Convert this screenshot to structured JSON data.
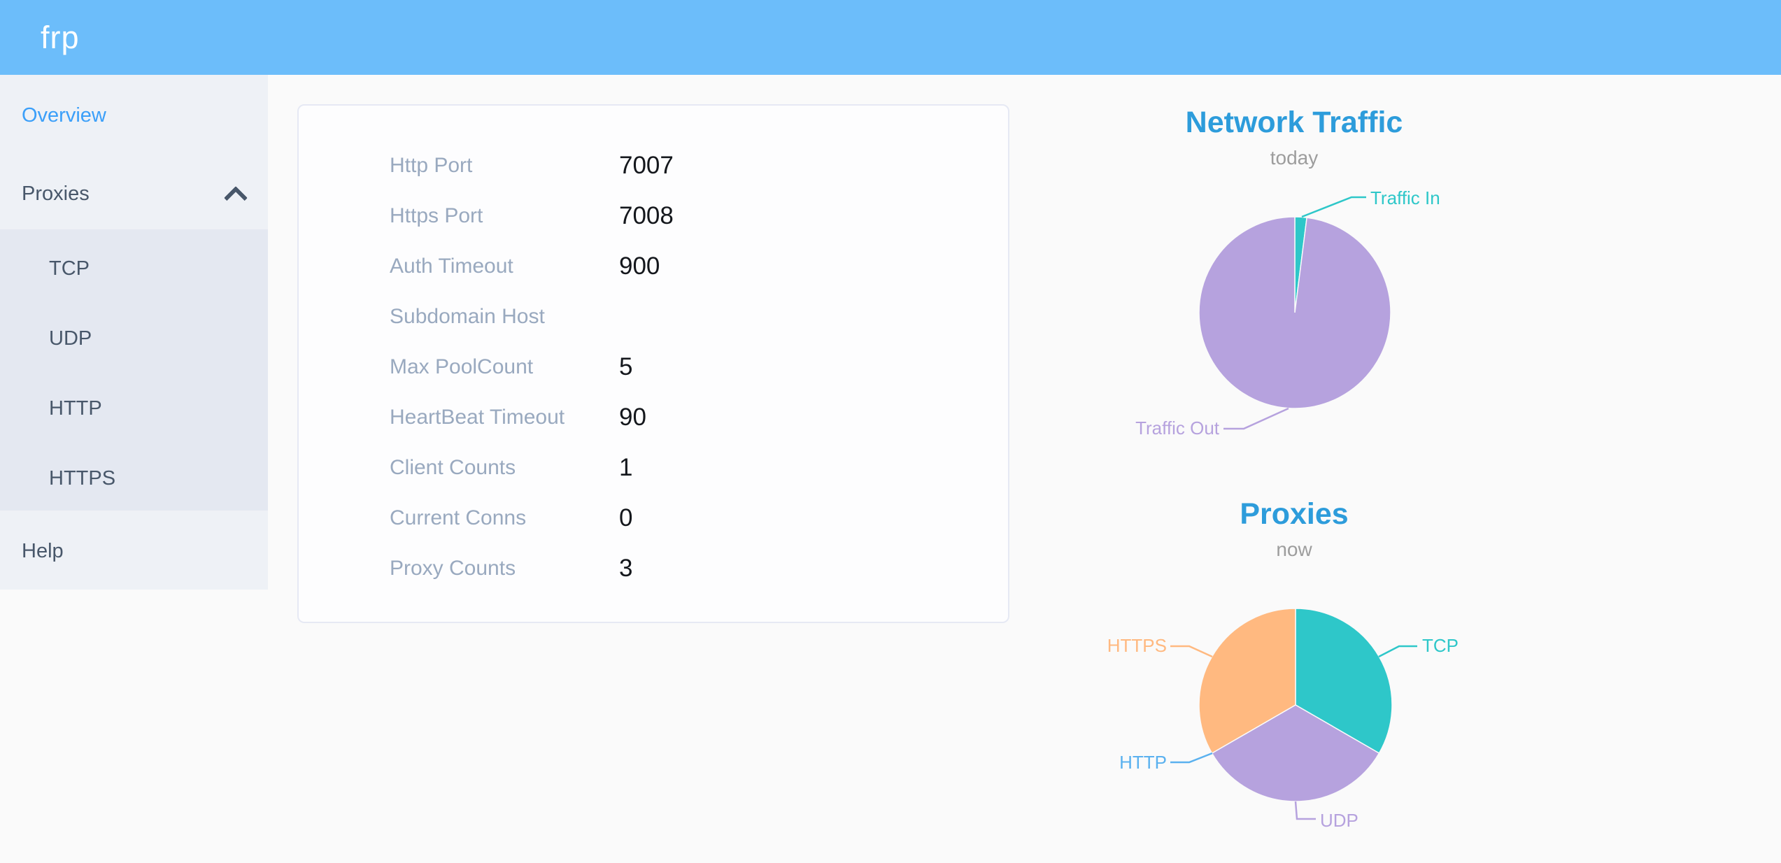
{
  "colors": {
    "header_bg": "#6cbdfa",
    "sidebar_bg": "#eef1f6",
    "submenu_bg": "#e4e8f1",
    "sidebar_text": "#48576a",
    "sidebar_active_text": "#3b9ff9",
    "card_label_text": "#99a9bf",
    "card_value_text": "#14171c",
    "chart_title_text": "#2d9cdb",
    "chart_subtitle_text": "#9d9d9d",
    "page_bg": "#fafafa"
  },
  "header": {
    "logo": "frp"
  },
  "sidebar": {
    "overview": "Overview",
    "proxies": "Proxies",
    "submenu": [
      "TCP",
      "UDP",
      "HTTP",
      "HTTPS"
    ],
    "help": "Help"
  },
  "overview_card": {
    "rows": [
      {
        "label": "Http Port",
        "value": "7007"
      },
      {
        "label": "Https Port",
        "value": "7008"
      },
      {
        "label": "Auth Timeout",
        "value": "900"
      },
      {
        "label": "Subdomain Host",
        "value": ""
      },
      {
        "label": "Max PoolCount",
        "value": "5"
      },
      {
        "label": "HeartBeat Timeout",
        "value": "90"
      },
      {
        "label": "Client Counts",
        "value": "1"
      },
      {
        "label": "Current Conns",
        "value": "0"
      },
      {
        "label": "Proxy Counts",
        "value": "3"
      }
    ]
  },
  "chart_data": [
    {
      "type": "pie",
      "title": "Network Traffic",
      "subtitle": "today",
      "values_unit": "percent (estimated from slice angles; byte values not shown)",
      "legend_position": "callout-labels",
      "slices": [
        {
          "name": "Traffic In",
          "value": 2,
          "color": "#2ec7c9"
        },
        {
          "name": "Traffic Out",
          "value": 98,
          "color": "#b6a2de"
        }
      ]
    },
    {
      "type": "pie",
      "title": "Proxies",
      "subtitle": "now",
      "values_unit": "proxy counts",
      "legend_position": "callout-labels",
      "slices": [
        {
          "name": "TCP",
          "value": 1,
          "color": "#2ec7c9"
        },
        {
          "name": "UDP",
          "value": 1,
          "color": "#b6a2de"
        },
        {
          "name": "HTTP",
          "value": 0,
          "color": "#5ab1ef"
        },
        {
          "name": "HTTPS",
          "value": 1,
          "color": "#ffb980"
        }
      ]
    }
  ]
}
